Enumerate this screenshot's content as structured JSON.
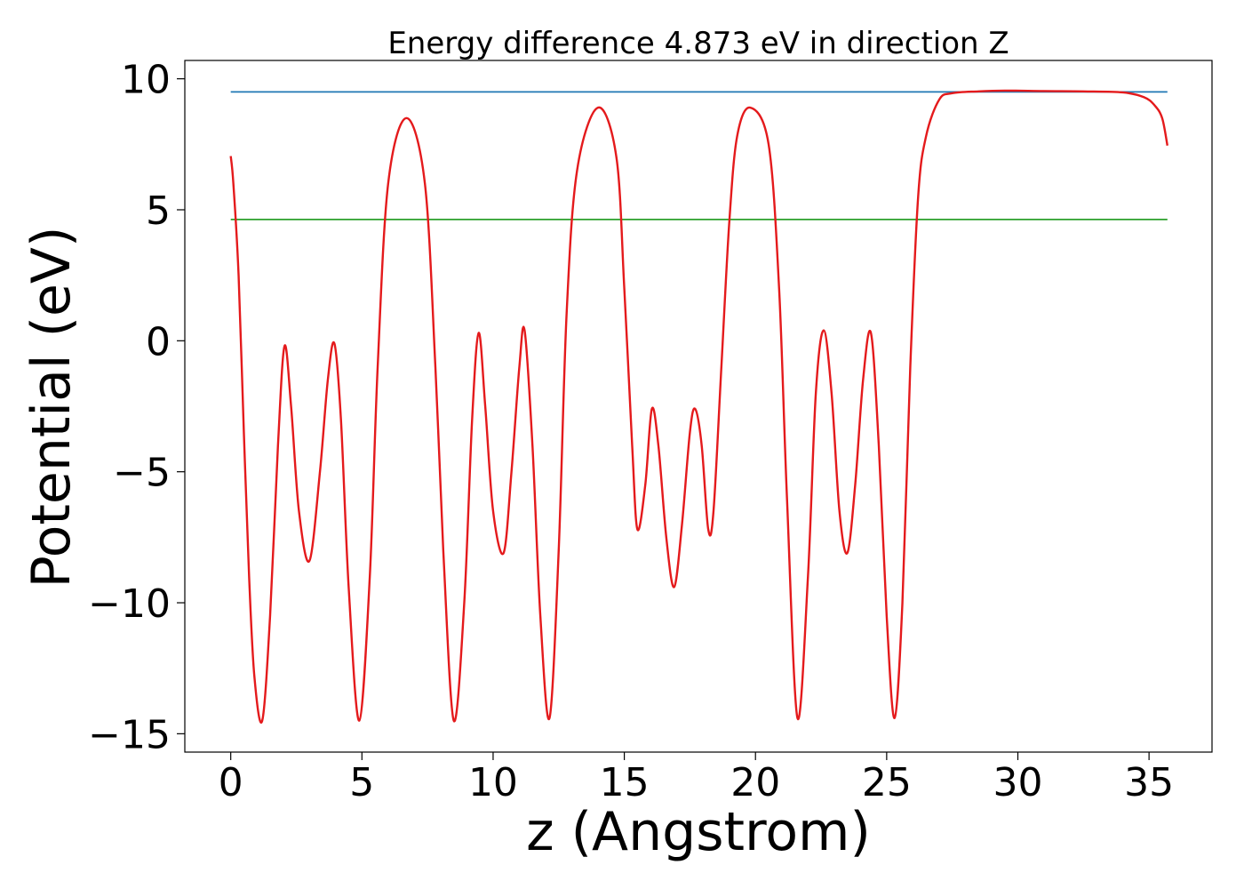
{
  "chart_data": {
    "type": "line",
    "title": "Energy difference 4.873 eV in direction Z",
    "xlabel": "z (Angstrom)",
    "ylabel": "Potential (eV)",
    "xlim": [
      -1.75,
      37.4
    ],
    "ylim": [
      -15.7,
      10.7
    ],
    "xticks": [
      0,
      5,
      10,
      15,
      20,
      25,
      30,
      35
    ],
    "yticks": [
      10,
      5,
      0,
      -5,
      -10,
      -15
    ],
    "ytick_labels": [
      "10",
      "5",
      "0",
      "−5",
      "−10",
      "−15"
    ],
    "grid": false,
    "legend": "none",
    "series": [
      {
        "color": "#1f77b4",
        "x": [
          0,
          35.7
        ],
        "y": [
          9.5,
          9.5
        ]
      },
      {
        "color": "#2ca02c",
        "x": [
          0,
          35.7
        ],
        "y": [
          4.63,
          4.63
        ]
      },
      {
        "color": "#e41a1c",
        "x": [
          0,
          0.1,
          0.3,
          0.5,
          0.7,
          0.9,
          1.2,
          1.5,
          1.8,
          2.05,
          2.3,
          2.6,
          3.0,
          3.4,
          3.7,
          3.95,
          4.2,
          4.5,
          4.9,
          5.3,
          5.6,
          6.0,
          6.7,
          7.4,
          7.8,
          8.1,
          8.5,
          8.9,
          9.2,
          9.45,
          9.7,
          10.0,
          10.4,
          10.7,
          11.0,
          11.2,
          11.5,
          11.8,
          12.15,
          12.5,
          12.8,
          13.2,
          14.0,
          14.7,
          15.0,
          15.3,
          15.5,
          15.8,
          16.05,
          16.3,
          16.6,
          16.9,
          17.2,
          17.5,
          17.7,
          17.95,
          18.2,
          18.4,
          18.7,
          19.0,
          19.3,
          19.8,
          20.5,
          20.9,
          21.2,
          21.6,
          22.0,
          22.3,
          22.6,
          22.9,
          23.2,
          23.5,
          23.8,
          24.1,
          24.4,
          24.7,
          25.0,
          25.3,
          25.6,
          25.9,
          26.2,
          26.5,
          27.0,
          27.5,
          28.5,
          29.5,
          31.0,
          32.5,
          34.0,
          34.8,
          35.2,
          35.5,
          35.7
        ],
        "y": [
          7.05,
          6.0,
          2.5,
          -3.5,
          -9.0,
          -12.8,
          -14.5,
          -10.5,
          -4.0,
          -0.2,
          -2.5,
          -6.5,
          -8.4,
          -5.0,
          -1.5,
          -0.1,
          -3.0,
          -9.5,
          -14.5,
          -9.0,
          -1.0,
          6.0,
          8.5,
          6.0,
          -1.0,
          -8.0,
          -14.5,
          -10.0,
          -3.0,
          0.3,
          -2.5,
          -6.5,
          -8.1,
          -5.0,
          -1.0,
          0.4,
          -4.0,
          -10.5,
          -14.4,
          -8.0,
          1.0,
          6.5,
          8.9,
          7.0,
          2.0,
          -4.0,
          -7.2,
          -5.5,
          -2.6,
          -4.0,
          -7.5,
          -9.4,
          -7.0,
          -3.5,
          -2.6,
          -4.0,
          -7.2,
          -6.5,
          -1.0,
          4.5,
          7.8,
          8.9,
          7.5,
          2.0,
          -6.0,
          -14.4,
          -9.0,
          -2.0,
          0.4,
          -2.0,
          -6.5,
          -8.1,
          -5.5,
          -1.5,
          0.3,
          -4.0,
          -10.5,
          -14.4,
          -10.0,
          -1.0,
          5.5,
          7.8,
          9.2,
          9.45,
          9.52,
          9.55,
          9.53,
          9.52,
          9.48,
          9.3,
          9.0,
          8.5,
          7.45
        ]
      }
    ]
  }
}
